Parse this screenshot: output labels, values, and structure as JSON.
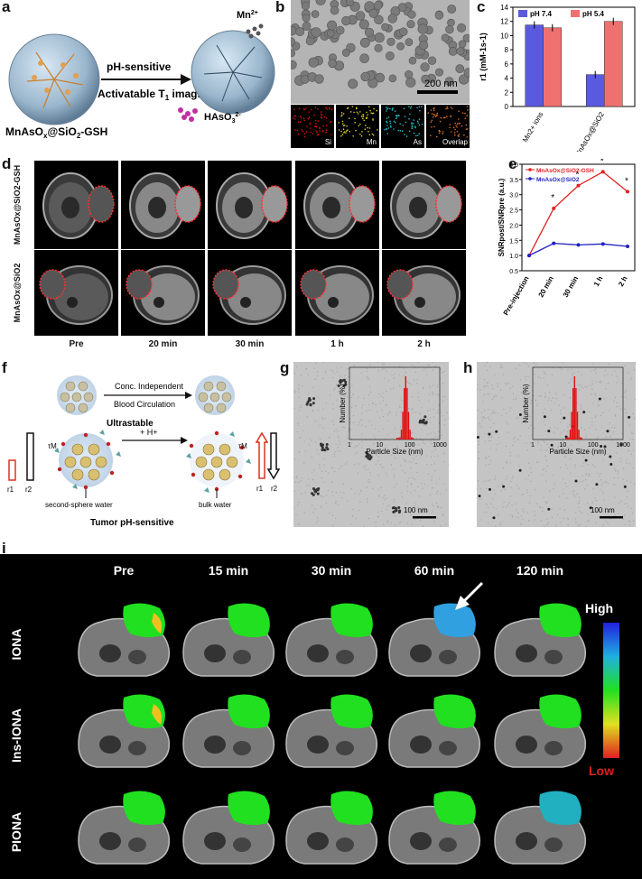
{
  "panel_a": {
    "label": "a",
    "arrow_top": "pH-sensitive",
    "arrow_bottom": "Activatable T",
    "arrow_bottom_sub": "1",
    "arrow_bottom_tail": " imaging",
    "mn_ion": "Mn",
    "mn_ion_sup": "2+",
    "has_ion": "HAsO",
    "has_sub": "3",
    "has_sup": "2-",
    "particle_name": "MnAsO",
    "particle_sub": "x",
    "particle_tail": "@SiO",
    "particle_sub2": "2",
    "particle_tail2": "-GSH"
  },
  "panel_b": {
    "label": "b",
    "scale_bar": "200 nm",
    "maps": [
      "Si",
      "Mn",
      "As",
      "Overlap"
    ],
    "map_colors": [
      "#e01010",
      "#e0d020",
      "#20c0d0",
      "#e07020"
    ]
  },
  "panel_c": {
    "label": "c",
    "ylabel": "r1 (mM-1s-1)",
    "legend": [
      "pH 7.4",
      "pH 5.4"
    ],
    "colors": [
      "#5a5ae0",
      "#f07070"
    ],
    "chart_data": {
      "type": "bar",
      "categories": [
        "Mn2+ ions",
        "MnAsOx@SiO2"
      ],
      "series": [
        {
          "name": "pH 7.4",
          "values": [
            11.5,
            4.5
          ]
        },
        {
          "name": "pH 5.4",
          "values": [
            11.1,
            12.0
          ]
        }
      ],
      "ylim": [
        0,
        14
      ],
      "yticks": [
        0,
        2,
        4,
        6,
        8,
        10,
        12,
        14
      ]
    }
  },
  "panel_d": {
    "label": "d",
    "row_labels": [
      "MnAsOx@SiO2-GSH",
      "MnAsOx@SiO2"
    ],
    "col_labels": [
      "Pre",
      "20 min",
      "30 min",
      "1 h",
      "2 h"
    ]
  },
  "panel_e": {
    "label": "e",
    "ylabel": "SNRpost/SNRpre (a.u.)",
    "legend": [
      "MnAsOx@SiO2-GSH",
      "MnAsOx@SiO2"
    ],
    "colors": [
      "#e02020",
      "#2020c0"
    ],
    "chart_data": {
      "type": "line",
      "categories": [
        "Pre-injection",
        "20 min",
        "30 min",
        "1 h",
        "2 h"
      ],
      "series": [
        {
          "name": "MnAsOx@SiO2-GSH",
          "values": [
            1.0,
            2.55,
            3.3,
            3.75,
            3.1
          ]
        },
        {
          "name": "MnAsOx@SiO2",
          "values": [
            1.0,
            1.4,
            1.35,
            1.38,
            1.3
          ]
        }
      ],
      "ylim": [
        0.5,
        4.0
      ],
      "yticks": [
        0.5,
        1.0,
        1.5,
        2.0,
        2.5,
        3.0,
        3.5,
        4.0
      ],
      "significance": [
        "",
        "*",
        "*",
        "*",
        "*"
      ]
    }
  },
  "panel_f": {
    "label": "f",
    "top_arrow_top": "Conc. Independent",
    "top_arrow_bottom": "Blood Circulation",
    "top_caption": "Ultrastable",
    "h_plus": "+ H+",
    "tau": "τM",
    "left_bars": [
      "r1",
      "r2"
    ],
    "right_bars": [
      "r1",
      "r2"
    ],
    "water_left": "second-sphere water",
    "water_right": "bulk water",
    "bottom_caption": "Tumor pH-sensitive"
  },
  "panel_g": {
    "label": "g",
    "scale": "100 nm",
    "xlabel": "Particle Size (nm)",
    "ylabel": "Number (%)",
    "xticks": [
      "1",
      "10",
      "100",
      "1000"
    ]
  },
  "panel_h": {
    "label": "h",
    "scale": "100 nm",
    "xlabel": "Particle Size (nm)",
    "ylabel": "Number (%)",
    "xticks": [
      "1",
      "10",
      "100",
      "1000"
    ]
  },
  "panel_i": {
    "label": "i",
    "col_labels": [
      "Pre",
      "15 min",
      "30 min",
      "60 min",
      "120 min"
    ],
    "row_labels": [
      "IONA",
      "Ins-IONA",
      "PIONA"
    ],
    "colorbar_high": "High",
    "colorbar_low": "Low"
  }
}
